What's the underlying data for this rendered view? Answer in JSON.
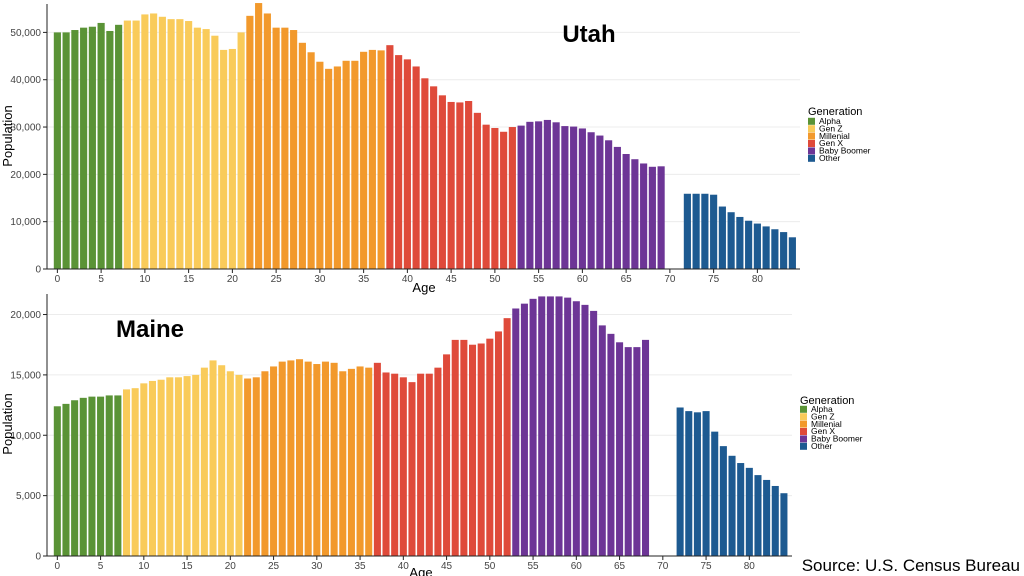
{
  "source": "Source: U.S. Census Bureau",
  "colors": {
    "Alpha": "#5a9336",
    "Gen Z": "#f9cb5a",
    "Millenial": "#f2992c",
    "Gen X": "#df4a3a",
    "Baby Boomer": "#6d3596",
    "Other": "#1d5a91"
  },
  "chart_data": [
    {
      "type": "bar",
      "title": "Utah",
      "xlabel": "Age",
      "ylabel": "Population",
      "xlim": [
        0,
        84
      ],
      "ylim": [
        0,
        56000
      ],
      "yticks": [
        0,
        10000,
        20000,
        30000,
        40000,
        50000
      ],
      "ytick_labels": [
        "0",
        "10,000",
        "20,000",
        "30,000",
        "40,000",
        "50,000"
      ],
      "xticks": [
        0,
        5,
        10,
        15,
        20,
        25,
        30,
        35,
        40,
        45,
        50,
        55,
        60,
        65,
        70,
        75,
        80
      ],
      "xtick_labels": [
        "0",
        "5",
        "10",
        "15",
        "20",
        "25",
        "30",
        "35",
        "40",
        "45",
        "50",
        "55",
        "60",
        "65",
        "70",
        "75",
        "80"
      ],
      "legend_title": "Generation",
      "legend": [
        "Alpha",
        "Gen Z",
        "Millenial",
        "Gen X",
        "Baby Boomer",
        "Other"
      ],
      "legend_position": "right",
      "series": [
        {
          "name": "Alpha",
          "start_age": 0,
          "values": [
            50000,
            50000,
            50500,
            51000,
            51200,
            52000,
            50300,
            51600
          ]
        },
        {
          "name": "Gen Z",
          "start_age": 8,
          "values": [
            52500,
            52500,
            53800,
            54000,
            53300,
            52800,
            52800,
            52400,
            51000,
            50700,
            49300,
            46300,
            46500,
            50000
          ]
        },
        {
          "name": "Millenial",
          "start_age": 22,
          "values": [
            53500,
            56200,
            54000,
            51000,
            51000,
            50500,
            47800,
            45800,
            43800,
            42300,
            42800,
            44000,
            44000,
            45900,
            46300,
            46200
          ]
        },
        {
          "name": "Gen X",
          "start_age": 38,
          "values": [
            47300,
            45200,
            44300,
            42800,
            40300,
            38600,
            36700,
            35300,
            35200,
            35500,
            33000,
            30500,
            29800,
            29000,
            30000
          ]
        },
        {
          "name": "Baby Boomer",
          "start_age": 53,
          "values": [
            30300,
            31100,
            31200,
            31500,
            31000,
            30200,
            30100,
            29700,
            28900,
            28200,
            27200,
            25800,
            24300,
            23200,
            22300,
            21600,
            21700
          ]
        },
        {
          "name": "Other",
          "start_age": 72,
          "values": [
            15900,
            15900,
            15900,
            15700,
            13200,
            12000,
            11000,
            10200,
            9600,
            9000,
            8400,
            7800,
            6700
          ]
        }
      ]
    },
    {
      "type": "bar",
      "title": "Maine",
      "xlabel": "Age",
      "ylabel": "Population",
      "xlim": [
        0,
        84
      ],
      "ylim": [
        0,
        21700
      ],
      "yticks": [
        0,
        5000,
        10000,
        15000,
        20000
      ],
      "ytick_labels": [
        "0",
        "5,000",
        "10,000",
        "15,000",
        "20,000"
      ],
      "xticks": [
        0,
        5,
        10,
        15,
        20,
        25,
        30,
        35,
        40,
        45,
        50,
        55,
        60,
        65,
        70,
        75,
        80
      ],
      "xtick_labels": [
        "0",
        "5",
        "10",
        "15",
        "20",
        "25",
        "30",
        "35",
        "40",
        "45",
        "50",
        "55",
        "60",
        "65",
        "70",
        "75",
        "80"
      ],
      "legend_title": "Generation",
      "legend": [
        "Alpha",
        "Gen Z",
        "Millenial",
        "Gen X",
        "Baby Boomer",
        "Other"
      ],
      "legend_position": "right",
      "series": [
        {
          "name": "Alpha",
          "start_age": 0,
          "values": [
            12400,
            12600,
            12900,
            13100,
            13200,
            13200,
            13300,
            13300
          ]
        },
        {
          "name": "Gen Z",
          "start_age": 8,
          "values": [
            13800,
            13900,
            14300,
            14500,
            14600,
            14800,
            14800,
            14900,
            15000,
            15600,
            16200,
            15800,
            15300,
            15000
          ]
        },
        {
          "name": "Millenial",
          "start_age": 22,
          "values": [
            14700,
            14800,
            15300,
            15700,
            16100,
            16200,
            16300,
            16100,
            15900,
            16100,
            16000,
            15300,
            15500,
            15700,
            15600
          ]
        },
        {
          "name": "Gen X",
          "start_age": 37,
          "values": [
            16000,
            15200,
            15100,
            14800,
            14400,
            15100,
            15100,
            15600,
            16700,
            17900,
            17900,
            17500,
            17600,
            18000,
            18600,
            19700
          ]
        },
        {
          "name": "Baby Boomer",
          "start_age": 53,
          "values": [
            20500,
            20900,
            21300,
            21500,
            21500,
            21500,
            21400,
            21100,
            20800,
            20300,
            19100,
            18400,
            17700,
            17300,
            17300,
            17900
          ]
        },
        {
          "name": "Other",
          "start_age": 72,
          "values": [
            12300,
            12000,
            11900,
            12000,
            10300,
            9100,
            8300,
            7700,
            7300,
            6700,
            6300,
            5800,
            5200
          ]
        }
      ]
    }
  ]
}
